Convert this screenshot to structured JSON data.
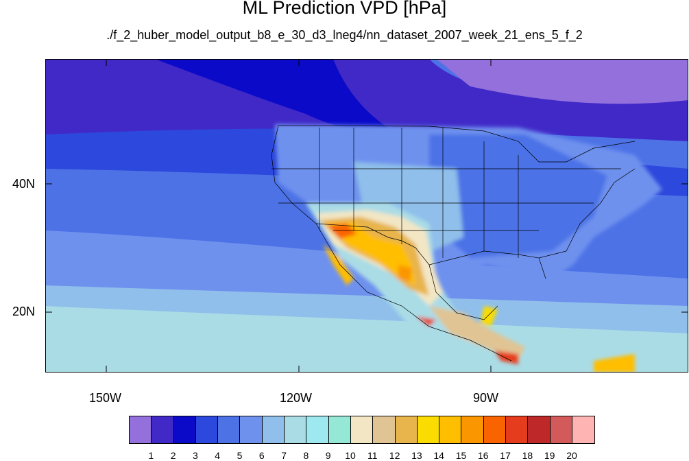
{
  "title": "ML Prediction VPD [hPa]",
  "subtitle": "./f_2_huber_model_output_b8_e_30_d3_lneg4/nn_dataset_2007_week_21_ens_5_f_2",
  "map": {
    "lat_ticks": [
      "40N",
      "20N"
    ],
    "lon_ticks": [
      "150W",
      "120W",
      "90W"
    ],
    "lon_range": [
      -160,
      -60
    ],
    "lat_range": [
      10,
      59
    ]
  },
  "colorbar": {
    "labels": [
      "1",
      "2",
      "3",
      "4",
      "5",
      "6",
      "7",
      "8",
      "9",
      "10",
      "11",
      "12",
      "13",
      "14",
      "15",
      "16",
      "17",
      "18",
      "19",
      "20"
    ],
    "colors": [
      "#9370db",
      "#4129c8",
      "#0a0ac8",
      "#2d48dc",
      "#4c72e6",
      "#6e91ee",
      "#8fbfea",
      "#aadce6",
      "#9ee8f0",
      "#96e8d6",
      "#f2e6c4",
      "#e0c494",
      "#e8b44c",
      "#fadc00",
      "#ffbe00",
      "#fa9600",
      "#fa6400",
      "#e63c1e",
      "#be2828",
      "#d25a5a",
      "#ffb4b4"
    ]
  }
}
